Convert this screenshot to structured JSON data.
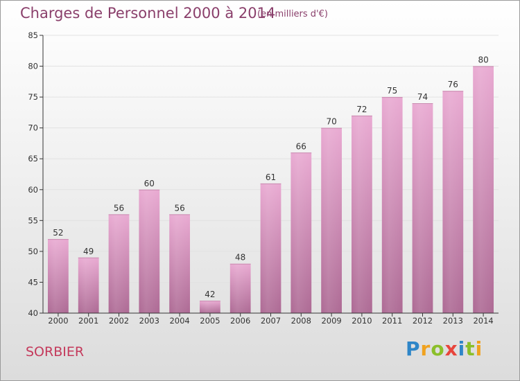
{
  "title": "Charges de Personnel 2000 à 2014",
  "subtitle": "(en milliers d'€)",
  "commune": "SORBIER",
  "brand": "Proxiti",
  "colors": {
    "title": "#8a3f6b",
    "commune": "#c4395b",
    "bar_top": "#e8a8cf",
    "bar_bottom": "#b06a96",
    "axis": "#333333",
    "gridline": "#e6e6e6"
  },
  "chart_data": {
    "type": "bar",
    "title": "Charges de Personnel 2000 à 2014",
    "subtitle": "(en milliers d'€)",
    "xlabel": "",
    "ylabel": "",
    "categories": [
      "2000",
      "2001",
      "2002",
      "2003",
      "2004",
      "2005",
      "2006",
      "2007",
      "2008",
      "2009",
      "2010",
      "2011",
      "2012",
      "2013",
      "2014"
    ],
    "values": [
      52,
      49,
      56,
      60,
      56,
      42,
      48,
      61,
      66,
      70,
      72,
      75,
      74,
      76,
      80
    ],
    "ylim": [
      40,
      85
    ],
    "yticks": [
      40,
      45,
      50,
      55,
      60,
      65,
      70,
      75,
      80,
      85
    ],
    "grid": true,
    "legend": "none",
    "data_labels": true
  }
}
